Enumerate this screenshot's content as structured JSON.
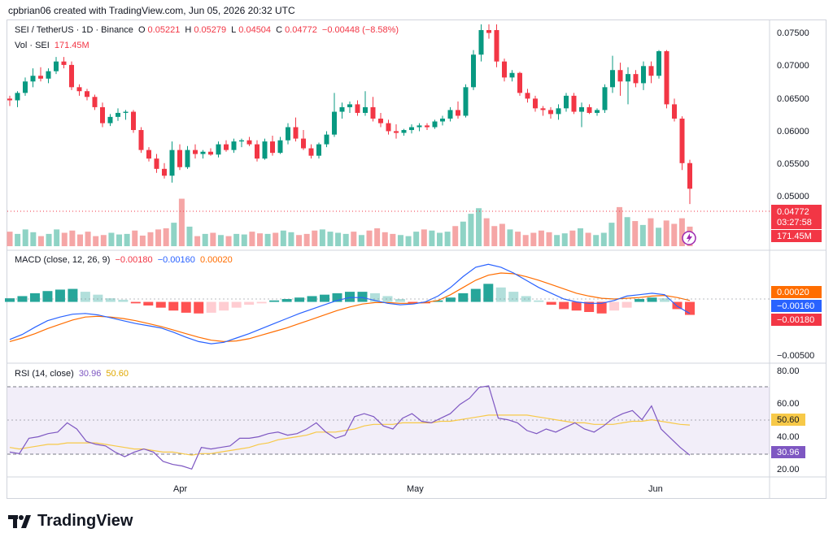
{
  "header": {
    "text": "cpbrian06 created with TradingView.com, Jun 05, 2026 20:32 UTC"
  },
  "legend": {
    "symbol": "SEI / TetherUS · 1D · Binance",
    "o_label": "O",
    "o": "0.05221",
    "h_label": "H",
    "h": "0.05279",
    "l_label": "L",
    "l": "0.04504",
    "c_label": "C",
    "c": "0.04772",
    "change": "−0.00448 (−8.58%)",
    "vol_label": "Vol · SEI",
    "vol": "171.45M"
  },
  "macd_legend": {
    "label": "MACD (close, 12, 26, 9)",
    "hist": "−0.00180",
    "macd": "−0.00160",
    "signal": "0.00020"
  },
  "rsi_legend": {
    "label": "RSI (14, close)",
    "rsi": "30.96",
    "ma": "50.60"
  },
  "price_axis": {
    "ticks": [
      "0.07500",
      "0.07000",
      "0.06500",
      "0.06000",
      "0.05500",
      "0.05000"
    ]
  },
  "price_badges": {
    "last": "0.04772",
    "countdown": "03:27:58",
    "volume": "171.45M"
  },
  "macd_axis": {
    "tick": "−0.00500"
  },
  "macd_badges": {
    "signal": "0.00020",
    "macd": "−0.00160",
    "hist": "−0.00180"
  },
  "rsi_axis": {
    "ticks": [
      "80.00",
      "60.00",
      "40.00",
      "20.00"
    ]
  },
  "rsi_badges": {
    "ma": "50.60",
    "rsi": "30.96"
  },
  "time_axis": {
    "labels": [
      "Apr",
      "May",
      "Jun"
    ]
  },
  "brand": {
    "name": "TradingView"
  },
  "colors": {
    "up": "#089981",
    "down": "#f23645",
    "vol_up": "#8fd3c5",
    "vol_down": "#f5a6a6",
    "macd_line": "#2962ff",
    "signal_line": "#ff6d00",
    "rsi_line": "#7e57c2",
    "rsi_ma": "#f7c948"
  },
  "chart_data": {
    "type": "candlestick",
    "ylim": [
      0.0452,
      0.0765
    ],
    "candles": [
      {
        "o": 0.0635,
        "h": 0.064,
        "l": 0.0622,
        "c": 0.0632
      },
      {
        "o": 0.0632,
        "h": 0.0648,
        "l": 0.062,
        "c": 0.0645
      },
      {
        "o": 0.0645,
        "h": 0.0672,
        "l": 0.064,
        "c": 0.0665
      },
      {
        "o": 0.0665,
        "h": 0.0688,
        "l": 0.0655,
        "c": 0.0675
      },
      {
        "o": 0.0675,
        "h": 0.069,
        "l": 0.0665,
        "c": 0.067
      },
      {
        "o": 0.067,
        "h": 0.0688,
        "l": 0.0662,
        "c": 0.0683
      },
      {
        "o": 0.0683,
        "h": 0.0708,
        "l": 0.0678,
        "c": 0.07
      },
      {
        "o": 0.07,
        "h": 0.0708,
        "l": 0.0688,
        "c": 0.0694
      },
      {
        "o": 0.0694,
        "h": 0.07,
        "l": 0.065,
        "c": 0.0655
      },
      {
        "o": 0.0655,
        "h": 0.066,
        "l": 0.064,
        "c": 0.0648
      },
      {
        "o": 0.0648,
        "h": 0.0652,
        "l": 0.0632,
        "c": 0.0638
      },
      {
        "o": 0.0638,
        "h": 0.0642,
        "l": 0.0615,
        "c": 0.062
      },
      {
        "o": 0.062,
        "h": 0.0628,
        "l": 0.0585,
        "c": 0.0592
      },
      {
        "o": 0.0592,
        "h": 0.0608,
        "l": 0.0587,
        "c": 0.0603
      },
      {
        "o": 0.0603,
        "h": 0.0618,
        "l": 0.0596,
        "c": 0.061
      },
      {
        "o": 0.061,
        "h": 0.0615,
        "l": 0.0598,
        "c": 0.0612
      },
      {
        "o": 0.0612,
        "h": 0.0615,
        "l": 0.0575,
        "c": 0.058
      },
      {
        "o": 0.058,
        "h": 0.0585,
        "l": 0.054,
        "c": 0.0545
      },
      {
        "o": 0.0545,
        "h": 0.055,
        "l": 0.0525,
        "c": 0.053
      },
      {
        "o": 0.053,
        "h": 0.0538,
        "l": 0.0505,
        "c": 0.0512
      },
      {
        "o": 0.0512,
        "h": 0.0522,
        "l": 0.0495,
        "c": 0.05
      },
      {
        "o": 0.05,
        "h": 0.056,
        "l": 0.0488,
        "c": 0.0545
      },
      {
        "o": 0.0545,
        "h": 0.0555,
        "l": 0.051,
        "c": 0.0515
      },
      {
        "o": 0.0515,
        "h": 0.0552,
        "l": 0.0512,
        "c": 0.0545
      },
      {
        "o": 0.0545,
        "h": 0.0555,
        "l": 0.053,
        "c": 0.0538
      },
      {
        "o": 0.0538,
        "h": 0.0545,
        "l": 0.053,
        "c": 0.0542
      },
      {
        "o": 0.0542,
        "h": 0.0548,
        "l": 0.0535,
        "c": 0.0537
      },
      {
        "o": 0.0537,
        "h": 0.056,
        "l": 0.0532,
        "c": 0.0555
      },
      {
        "o": 0.0555,
        "h": 0.0562,
        "l": 0.0542,
        "c": 0.0545
      },
      {
        "o": 0.0545,
        "h": 0.0565,
        "l": 0.054,
        "c": 0.056
      },
      {
        "o": 0.056,
        "h": 0.0565,
        "l": 0.055,
        "c": 0.0562
      },
      {
        "o": 0.0562,
        "h": 0.0568,
        "l": 0.0552,
        "c": 0.0555
      },
      {
        "o": 0.0555,
        "h": 0.0562,
        "l": 0.0525,
        "c": 0.053
      },
      {
        "o": 0.053,
        "h": 0.0565,
        "l": 0.0528,
        "c": 0.056
      },
      {
        "o": 0.056,
        "h": 0.057,
        "l": 0.0535,
        "c": 0.054
      },
      {
        "o": 0.054,
        "h": 0.0568,
        "l": 0.0538,
        "c": 0.0562
      },
      {
        "o": 0.0562,
        "h": 0.0592,
        "l": 0.0555,
        "c": 0.0585
      },
      {
        "o": 0.0585,
        "h": 0.0602,
        "l": 0.056,
        "c": 0.0565
      },
      {
        "o": 0.0565,
        "h": 0.058,
        "l": 0.0545,
        "c": 0.0548
      },
      {
        "o": 0.0548,
        "h": 0.0555,
        "l": 0.053,
        "c": 0.0535
      },
      {
        "o": 0.0535,
        "h": 0.0558,
        "l": 0.053,
        "c": 0.0555
      },
      {
        "o": 0.0555,
        "h": 0.0578,
        "l": 0.055,
        "c": 0.0572
      },
      {
        "o": 0.0572,
        "h": 0.0645,
        "l": 0.0568,
        "c": 0.0612
      },
      {
        "o": 0.0612,
        "h": 0.0628,
        "l": 0.06,
        "c": 0.062
      },
      {
        "o": 0.062,
        "h": 0.063,
        "l": 0.061,
        "c": 0.0625
      },
      {
        "o": 0.0625,
        "h": 0.0632,
        "l": 0.0605,
        "c": 0.061
      },
      {
        "o": 0.061,
        "h": 0.0648,
        "l": 0.0605,
        "c": 0.062
      },
      {
        "o": 0.062,
        "h": 0.0638,
        "l": 0.0595,
        "c": 0.06
      },
      {
        "o": 0.06,
        "h": 0.061,
        "l": 0.0585,
        "c": 0.0592
      },
      {
        "o": 0.0592,
        "h": 0.0598,
        "l": 0.0572,
        "c": 0.0578
      },
      {
        "o": 0.0578,
        "h": 0.059,
        "l": 0.0565,
        "c": 0.0575
      },
      {
        "o": 0.0575,
        "h": 0.0582,
        "l": 0.057,
        "c": 0.058
      },
      {
        "o": 0.058,
        "h": 0.059,
        "l": 0.0574,
        "c": 0.0585
      },
      {
        "o": 0.0585,
        "h": 0.0592,
        "l": 0.0578,
        "c": 0.0588
      },
      {
        "o": 0.0588,
        "h": 0.0592,
        "l": 0.058,
        "c": 0.0585
      },
      {
        "o": 0.0585,
        "h": 0.0598,
        "l": 0.0582,
        "c": 0.0595
      },
      {
        "o": 0.0595,
        "h": 0.0605,
        "l": 0.0588,
        "c": 0.06
      },
      {
        "o": 0.06,
        "h": 0.062,
        "l": 0.0595,
        "c": 0.0615
      },
      {
        "o": 0.0615,
        "h": 0.063,
        "l": 0.06,
        "c": 0.0605
      },
      {
        "o": 0.0605,
        "h": 0.066,
        "l": 0.0602,
        "c": 0.0655
      },
      {
        "o": 0.0655,
        "h": 0.072,
        "l": 0.065,
        "c": 0.0712
      },
      {
        "o": 0.0712,
        "h": 0.0765,
        "l": 0.07,
        "c": 0.0755
      },
      {
        "o": 0.0755,
        "h": 0.0765,
        "l": 0.074,
        "c": 0.075
      },
      {
        "o": 0.0755,
        "h": 0.0765,
        "l": 0.069,
        "c": 0.07
      },
      {
        "o": 0.07,
        "h": 0.0705,
        "l": 0.0665,
        "c": 0.0672
      },
      {
        "o": 0.0672,
        "h": 0.0685,
        "l": 0.0665,
        "c": 0.068
      },
      {
        "o": 0.068,
        "h": 0.0682,
        "l": 0.064,
        "c": 0.0645
      },
      {
        "o": 0.0645,
        "h": 0.0652,
        "l": 0.0628,
        "c": 0.0635
      },
      {
        "o": 0.0635,
        "h": 0.064,
        "l": 0.0612,
        "c": 0.0618
      },
      {
        "o": 0.0618,
        "h": 0.0622,
        "l": 0.0605,
        "c": 0.0615
      },
      {
        "o": 0.0615,
        "h": 0.062,
        "l": 0.06,
        "c": 0.0608
      },
      {
        "o": 0.0608,
        "h": 0.0625,
        "l": 0.0598,
        "c": 0.0618
      },
      {
        "o": 0.0618,
        "h": 0.0645,
        "l": 0.0612,
        "c": 0.064
      },
      {
        "o": 0.064,
        "h": 0.0645,
        "l": 0.0608,
        "c": 0.0612
      },
      {
        "o": 0.0612,
        "h": 0.0628,
        "l": 0.0585,
        "c": 0.062
      },
      {
        "o": 0.062,
        "h": 0.0625,
        "l": 0.0608,
        "c": 0.061
      },
      {
        "o": 0.061,
        "h": 0.0618,
        "l": 0.0605,
        "c": 0.0615
      },
      {
        "o": 0.0615,
        "h": 0.066,
        "l": 0.061,
        "c": 0.0655
      },
      {
        "o": 0.0655,
        "h": 0.071,
        "l": 0.0645,
        "c": 0.0685
      },
      {
        "o": 0.0685,
        "h": 0.0698,
        "l": 0.064,
        "c": 0.0665
      },
      {
        "o": 0.0665,
        "h": 0.069,
        "l": 0.0625,
        "c": 0.0678
      },
      {
        "o": 0.0678,
        "h": 0.0685,
        "l": 0.0655,
        "c": 0.0662
      },
      {
        "o": 0.0662,
        "h": 0.07,
        "l": 0.065,
        "c": 0.0692
      },
      {
        "o": 0.0692,
        "h": 0.07,
        "l": 0.0662,
        "c": 0.0675
      },
      {
        "o": 0.0675,
        "h": 0.072,
        "l": 0.067,
        "c": 0.0718
      },
      {
        "o": 0.0718,
        "h": 0.072,
        "l": 0.0618,
        "c": 0.0625
      },
      {
        "o": 0.0625,
        "h": 0.0635,
        "l": 0.0595,
        "c": 0.06
      },
      {
        "o": 0.06,
        "h": 0.0604,
        "l": 0.051,
        "c": 0.0522
      },
      {
        "o": 0.05221,
        "h": 0.05279,
        "l": 0.04504,
        "c": 0.04772
      }
    ],
    "volume_ylim": [
      0,
      160
    ],
    "volume": [
      26,
      22,
      30,
      25,
      18,
      22,
      30,
      24,
      28,
      21,
      26,
      18,
      20,
      24,
      21,
      22,
      28,
      19,
      25,
      30,
      32,
      42,
      85,
      35,
      18,
      22,
      24,
      20,
      18,
      22,
      21,
      26,
      23,
      22,
      24,
      28,
      25,
      20,
      22,
      28,
      30,
      26,
      24,
      22,
      26,
      20,
      28,
      32,
      25,
      22,
      20,
      18,
      26,
      30,
      28,
      24,
      26,
      36,
      44,
      58,
      68,
      50,
      36,
      40,
      30,
      26,
      20,
      24,
      28,
      25,
      20,
      23,
      28,
      32,
      24,
      20,
      24,
      42,
      70,
      52,
      45,
      38,
      50,
      33,
      46,
      40,
      50,
      35
    ],
    "macd": {
      "ylim": [
        -0.0068,
        0.0058
      ],
      "macd": [
        -0.0052,
        -0.0045,
        -0.0035,
        -0.0026,
        -0.0021,
        -0.0017,
        -0.0016,
        -0.0018,
        -0.0022,
        -0.0026,
        -0.003,
        -0.0033,
        -0.0036,
        -0.0042,
        -0.0049,
        -0.0055,
        -0.0058,
        -0.0056,
        -0.005,
        -0.0044,
        -0.0037,
        -0.003,
        -0.0023,
        -0.0016,
        -0.001,
        -0.0004,
        0.0002,
        0.0006,
        0.0006,
        0.0002,
        -0.0002,
        -0.0004,
        -0.0003,
        0.0,
        0.0008,
        0.002,
        0.0035,
        0.0048,
        0.0052,
        0.0048,
        0.004,
        0.003,
        0.002,
        0.0012,
        0.0004,
        0.0,
        -0.0002,
        -0.0002,
        0.0002,
        0.0008,
        0.001,
        0.0012,
        0.001,
        -0.0006,
        -0.0016
      ],
      "signal": [
        -0.0055,
        -0.005,
        -0.0044,
        -0.0037,
        -0.0031,
        -0.0025,
        -0.0021,
        -0.002,
        -0.0021,
        -0.0023,
        -0.0026,
        -0.003,
        -0.0034,
        -0.0039,
        -0.0044,
        -0.0049,
        -0.0053,
        -0.0055,
        -0.0054,
        -0.0051,
        -0.0046,
        -0.0041,
        -0.0036,
        -0.003,
        -0.0024,
        -0.0018,
        -0.0012,
        -0.0007,
        -0.0003,
        -0.0001,
        -0.0001,
        -0.0002,
        -0.0002,
        -0.0001,
        0.0002,
        0.001,
        0.002,
        0.003,
        0.0037,
        0.004,
        0.0039,
        0.0035,
        0.003,
        0.0024,
        0.0018,
        0.0012,
        0.0008,
        0.0005,
        0.0004,
        0.0005,
        0.0006,
        0.0008,
        0.0009,
        0.0006,
        0.0002
      ],
      "hist": [
        0.0005,
        0.0008,
        0.0012,
        0.0015,
        0.0017,
        0.0018,
        0.0014,
        0.001,
        0.0005,
        0.0003,
        -0.0002,
        -0.0005,
        -0.0008,
        -0.0012,
        -0.0015,
        -0.0016,
        -0.0015,
        -0.0012,
        -0.0008,
        -0.0004,
        -0.0002,
        0.0002,
        0.0004,
        0.0006,
        0.0008,
        0.001,
        0.0012,
        0.0014,
        0.0014,
        0.0012,
        0.0008,
        0.0004,
        -0.0002,
        -0.0002,
        0.0002,
        0.0006,
        0.0012,
        0.0018,
        0.0025,
        0.002,
        0.0014,
        0.0008,
        0.0002,
        -0.0004,
        -0.001,
        -0.0012,
        -0.0014,
        -0.0016,
        -0.0012,
        -0.0008,
        0.0004,
        0.0006,
        0.0005,
        -0.001,
        -0.0018
      ]
    },
    "rsi": {
      "ylim": [
        10,
        86
      ],
      "values": [
        33,
        32,
        42,
        43,
        45,
        46,
        52,
        48,
        40,
        38,
        37,
        33,
        30,
        33,
        35,
        33,
        27,
        25,
        24,
        22,
        36,
        35,
        36,
        37,
        42,
        42,
        43,
        45,
        46,
        44,
        45,
        48,
        52,
        46,
        42,
        44,
        56,
        58,
        56,
        50,
        48,
        55,
        58,
        53,
        52,
        55,
        58,
        64,
        68,
        75,
        76,
        55,
        54,
        52,
        47,
        45,
        48,
        46,
        49,
        52,
        48,
        46,
        50,
        55,
        58,
        60,
        54,
        63,
        48,
        42,
        36,
        31
      ],
      "ma": [
        36,
        35,
        36,
        37,
        38,
        38,
        39,
        39,
        39,
        39,
        38,
        37,
        36,
        35,
        35,
        34,
        33,
        33,
        32,
        31,
        32,
        32,
        33,
        34,
        35,
        36,
        38,
        39,
        41,
        42,
        43,
        44,
        46,
        46,
        46,
        47,
        48,
        50,
        51,
        51,
        51,
        52,
        52,
        52,
        52,
        53,
        53,
        54,
        55,
        56,
        57,
        57,
        57,
        57,
        57,
        56,
        55,
        54,
        53,
        52,
        52,
        51,
        51,
        51,
        52,
        53,
        53,
        54,
        53,
        52,
        51,
        50.6
      ]
    }
  }
}
